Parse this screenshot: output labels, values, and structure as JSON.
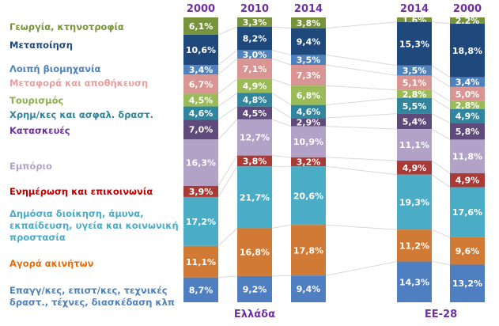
{
  "chart_data": {
    "type": "bar",
    "stacked": true,
    "title": "",
    "xlabel": "",
    "ylabel": "",
    "ylim": [
      0,
      100
    ],
    "unit": "%",
    "groups": [
      {
        "name": "Ελλάδα",
        "columns": [
          "2000",
          "2010",
          "2014"
        ]
      },
      {
        "name": "ΕΕ-28",
        "columns": [
          "2014",
          "2000"
        ]
      }
    ],
    "categories": [
      "Ελλάδα 2000",
      "Ελλάδα 2010",
      "Ελλάδα 2014",
      "ΕΕ-28 2014",
      "ΕΕ-28 2000"
    ],
    "column_labels": [
      "2000",
      "2010",
      "2014",
      "2014",
      "2000"
    ],
    "series": [
      {
        "name": "Γεωργία, κτηνοτροφία",
        "color": "#77933c",
        "values": [
          6.1,
          3.3,
          3.8,
          1.6,
          2.2
        ],
        "labels": [
          "6,1%",
          "3,3%",
          "3,8%",
          "1,6%",
          "2,2%"
        ]
      },
      {
        "name": "Μεταποίηση",
        "color": "#1f497d",
        "values": [
          10.6,
          8.2,
          9.4,
          15.3,
          18.8
        ],
        "labels": [
          "10,6%",
          "8,2%",
          "9,4%",
          "15,3%",
          "18,8%"
        ]
      },
      {
        "name": "Λοιπή βιομηχανία",
        "color": "#4f81bd",
        "values": [
          3.4,
          3.0,
          3.5,
          3.5,
          3.4
        ],
        "labels": [
          "3,4%",
          "3,0%",
          "3,5%",
          "3,5%",
          "3,4%"
        ]
      },
      {
        "name": "Μεταφορά και αποθήκευση",
        "color": "#d99594",
        "values": [
          6.7,
          7.1,
          7.3,
          5.1,
          5.0
        ],
        "labels": [
          "6,7%",
          "7,1%",
          "7,3%",
          "5,1%",
          "5,0%"
        ]
      },
      {
        "name": "Τουρισμός",
        "color": "#9bbb59",
        "values": [
          4.5,
          4.9,
          6.8,
          2.8,
          2.8
        ],
        "labels": [
          "4,5%",
          "4,9%",
          "6,8%",
          "2,8%",
          "2,8%"
        ]
      },
      {
        "name": "Χρημ/κες και ασφαλ. δραστ.",
        "color": "#31859c",
        "values": [
          4.6,
          4.8,
          4.6,
          5.5,
          4.9
        ],
        "labels": [
          "4,6%",
          "4,8%",
          "4,6%",
          "5,5%",
          "4,9%"
        ]
      },
      {
        "name": "Κατασκευές",
        "color": "#604a7b",
        "values": [
          7.0,
          4.5,
          2.9,
          5.4,
          5.8
        ],
        "labels": [
          "7,0%",
          "4,5%",
          "2,9%",
          "5,4%",
          "5,8%"
        ]
      },
      {
        "name": "Εμπόριο",
        "color": "#b3a2c7",
        "values": [
          16.3,
          12.7,
          10.9,
          11.1,
          11.8
        ],
        "labels": [
          "16,3%",
          "12,7%",
          "10,9%",
          "11,1%",
          "11,8%"
        ]
      },
      {
        "name": "Ενημέρωση και επικοινωνία",
        "color": "#a93a36",
        "values": [
          3.9,
          3.8,
          3.2,
          4.9,
          4.9
        ],
        "labels": [
          "3,9%",
          "3,8%",
          "3,2%",
          "4,9%",
          "4,9%"
        ]
      },
      {
        "name": "Δημόσια διοίκηση, άμυνα, εκπαίδευση, υγεία και κοινωνική προστασία",
        "color": "#4bacc6",
        "values": [
          17.2,
          21.7,
          20.6,
          19.3,
          17.6
        ],
        "labels": [
          "17,2%",
          "21,7%",
          "20,6%",
          "19,3%",
          "17,6%"
        ]
      },
      {
        "name": "Αγορά ακινήτων",
        "color": "#d17a35",
        "values": [
          11.1,
          16.8,
          17.8,
          11.2,
          9.6
        ],
        "labels": [
          "11,1%",
          "16,8%",
          "17,8%",
          "11,2%",
          "9,6%"
        ]
      },
      {
        "name": "Επαγγ/κες, επιστ/κες, τεχνικές δραστ., τέχνες, διασκέδαση κλπ",
        "color": "#4f7fc0",
        "values": [
          8.7,
          9.2,
          9.4,
          14.3,
          13.2
        ],
        "labels": [
          "8,7%",
          "9,2%",
          "9,4%",
          "14,3%",
          "13,2%"
        ]
      }
    ],
    "legend": {
      "placement": "left",
      "entries": [
        {
          "text": "Γεωργία, κτηνοτροφία",
          "color": "#77933c"
        },
        {
          "text": "Μεταποίηση",
          "color": "#1f497d"
        },
        {
          "text": "Λοιπή βιομηχανία",
          "color": "#4f81bd"
        },
        {
          "text": "Μεταφορά και αποθήκευση",
          "color": "#e6a09f"
        },
        {
          "text": "Τουρισμός",
          "color": "#8cb04a"
        },
        {
          "text": "Χρημ/κες και ασφαλ. δραστ.",
          "color": "#31859c"
        },
        {
          "text": "Κατασκευές",
          "color": "#7030a0"
        },
        {
          "text": "Εμπόριο",
          "color": "#b3a2c7"
        },
        {
          "text": "Ενημέρωση και επικοινωνία",
          "color": "#c00000"
        },
        {
          "text": "Δημόσια διοίκηση, άμυνα,\nεκπαίδευση, υγεία και κοινωνική\nπροστασία",
          "color": "#4bacc6"
        },
        {
          "text": "Αγορά ακινήτων",
          "color": "#e46c0a"
        },
        {
          "text": "Επαγγ/κες, επιστ/κες, τεχνικές\nδραστ., τέχνες, διασκέδαση κλπ",
          "color": "#4f81bd"
        }
      ]
    },
    "connector_color": "#d9d9d9"
  }
}
